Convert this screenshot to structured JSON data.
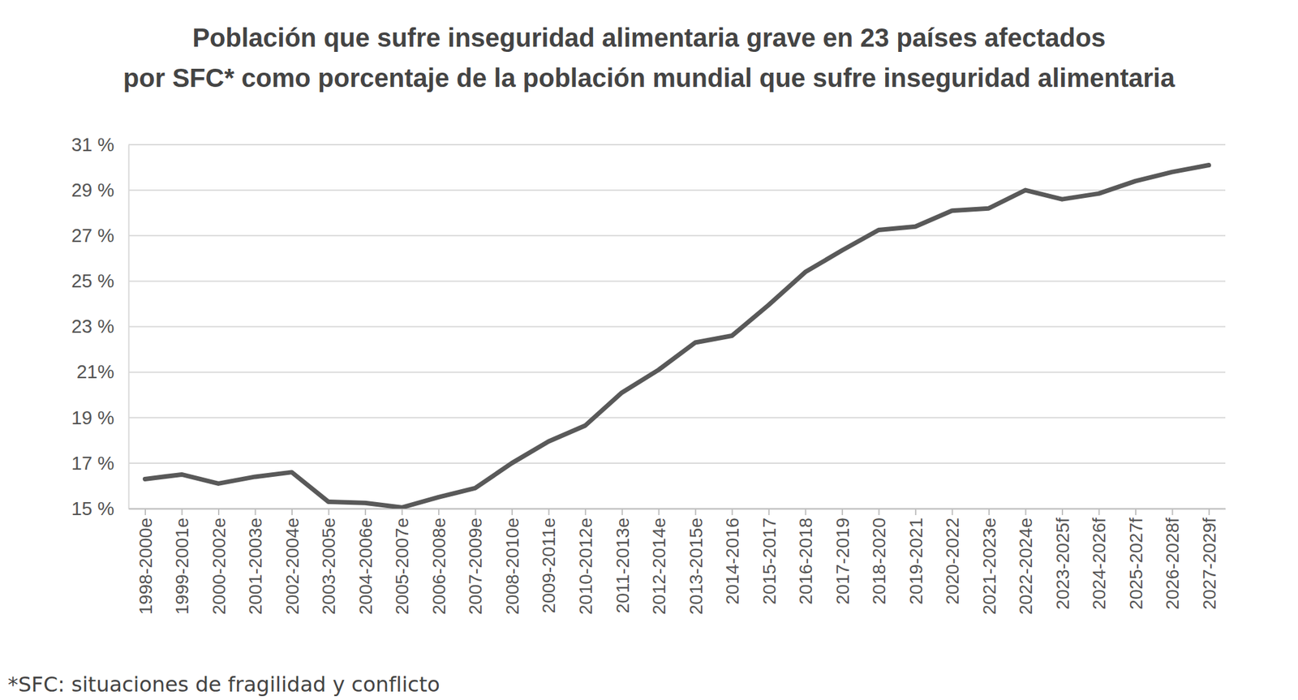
{
  "chart_data": {
    "type": "line",
    "title": [
      "Población que sufre inseguridad alimentaria grave en 23 países afectados",
      "por SFC* como porcentaje de la población mundial que sufre inseguridad alimentaria"
    ],
    "annotations": [
      "*SFC: situaciones de fragilidad y conflicto"
    ],
    "categories": [
      "1998-2000e",
      "1999-2001e",
      "2000-2002e",
      "2001-2003e",
      "2002-2004e",
      "2003-2005e",
      "2004-2006e",
      "2005-2007e",
      "2006-2008e",
      "2007-2009e",
      "2008-2010e",
      "2009-2011e",
      "2010-2012e",
      "2011-2013e",
      "2012-2014e",
      "2013-2015e",
      "2014-2016",
      "2015-2017",
      "2016-2018",
      "2017-2019",
      "2018-2020",
      "2019-2021",
      "2020-2022",
      "2021-2023e",
      "2022-2024e",
      "2023-2025f",
      "2024-2026f",
      "2025-2027f",
      "2026-2028f",
      "2027-2029f"
    ],
    "values": [
      16.3,
      16.5,
      16.1,
      16.4,
      16.6,
      15.3,
      15.25,
      15.05,
      15.5,
      15.9,
      17.0,
      17.95,
      18.65,
      20.1,
      21.1,
      22.3,
      22.6,
      23.95,
      25.4,
      26.35,
      27.25,
      27.4,
      28.1,
      28.2,
      29.0,
      28.6,
      28.85,
      29.4,
      29.8,
      30.1
    ],
    "color": "#595959",
    "ylim": [
      15,
      31
    ],
    "yticks": [
      {
        "value": 15,
        "label": "15 %"
      },
      {
        "value": 17,
        "label": "17 %"
      },
      {
        "value": 19,
        "label": "19 %"
      },
      {
        "value": 21,
        "label": "21%"
      },
      {
        "value": 23,
        "label": "23 %"
      },
      {
        "value": 25,
        "label": "25 %"
      },
      {
        "value": 27,
        "label": "27 %"
      },
      {
        "value": 29,
        "label": "29 %"
      },
      {
        "value": 31,
        "label": "31 %"
      }
    ],
    "grid": true
  }
}
